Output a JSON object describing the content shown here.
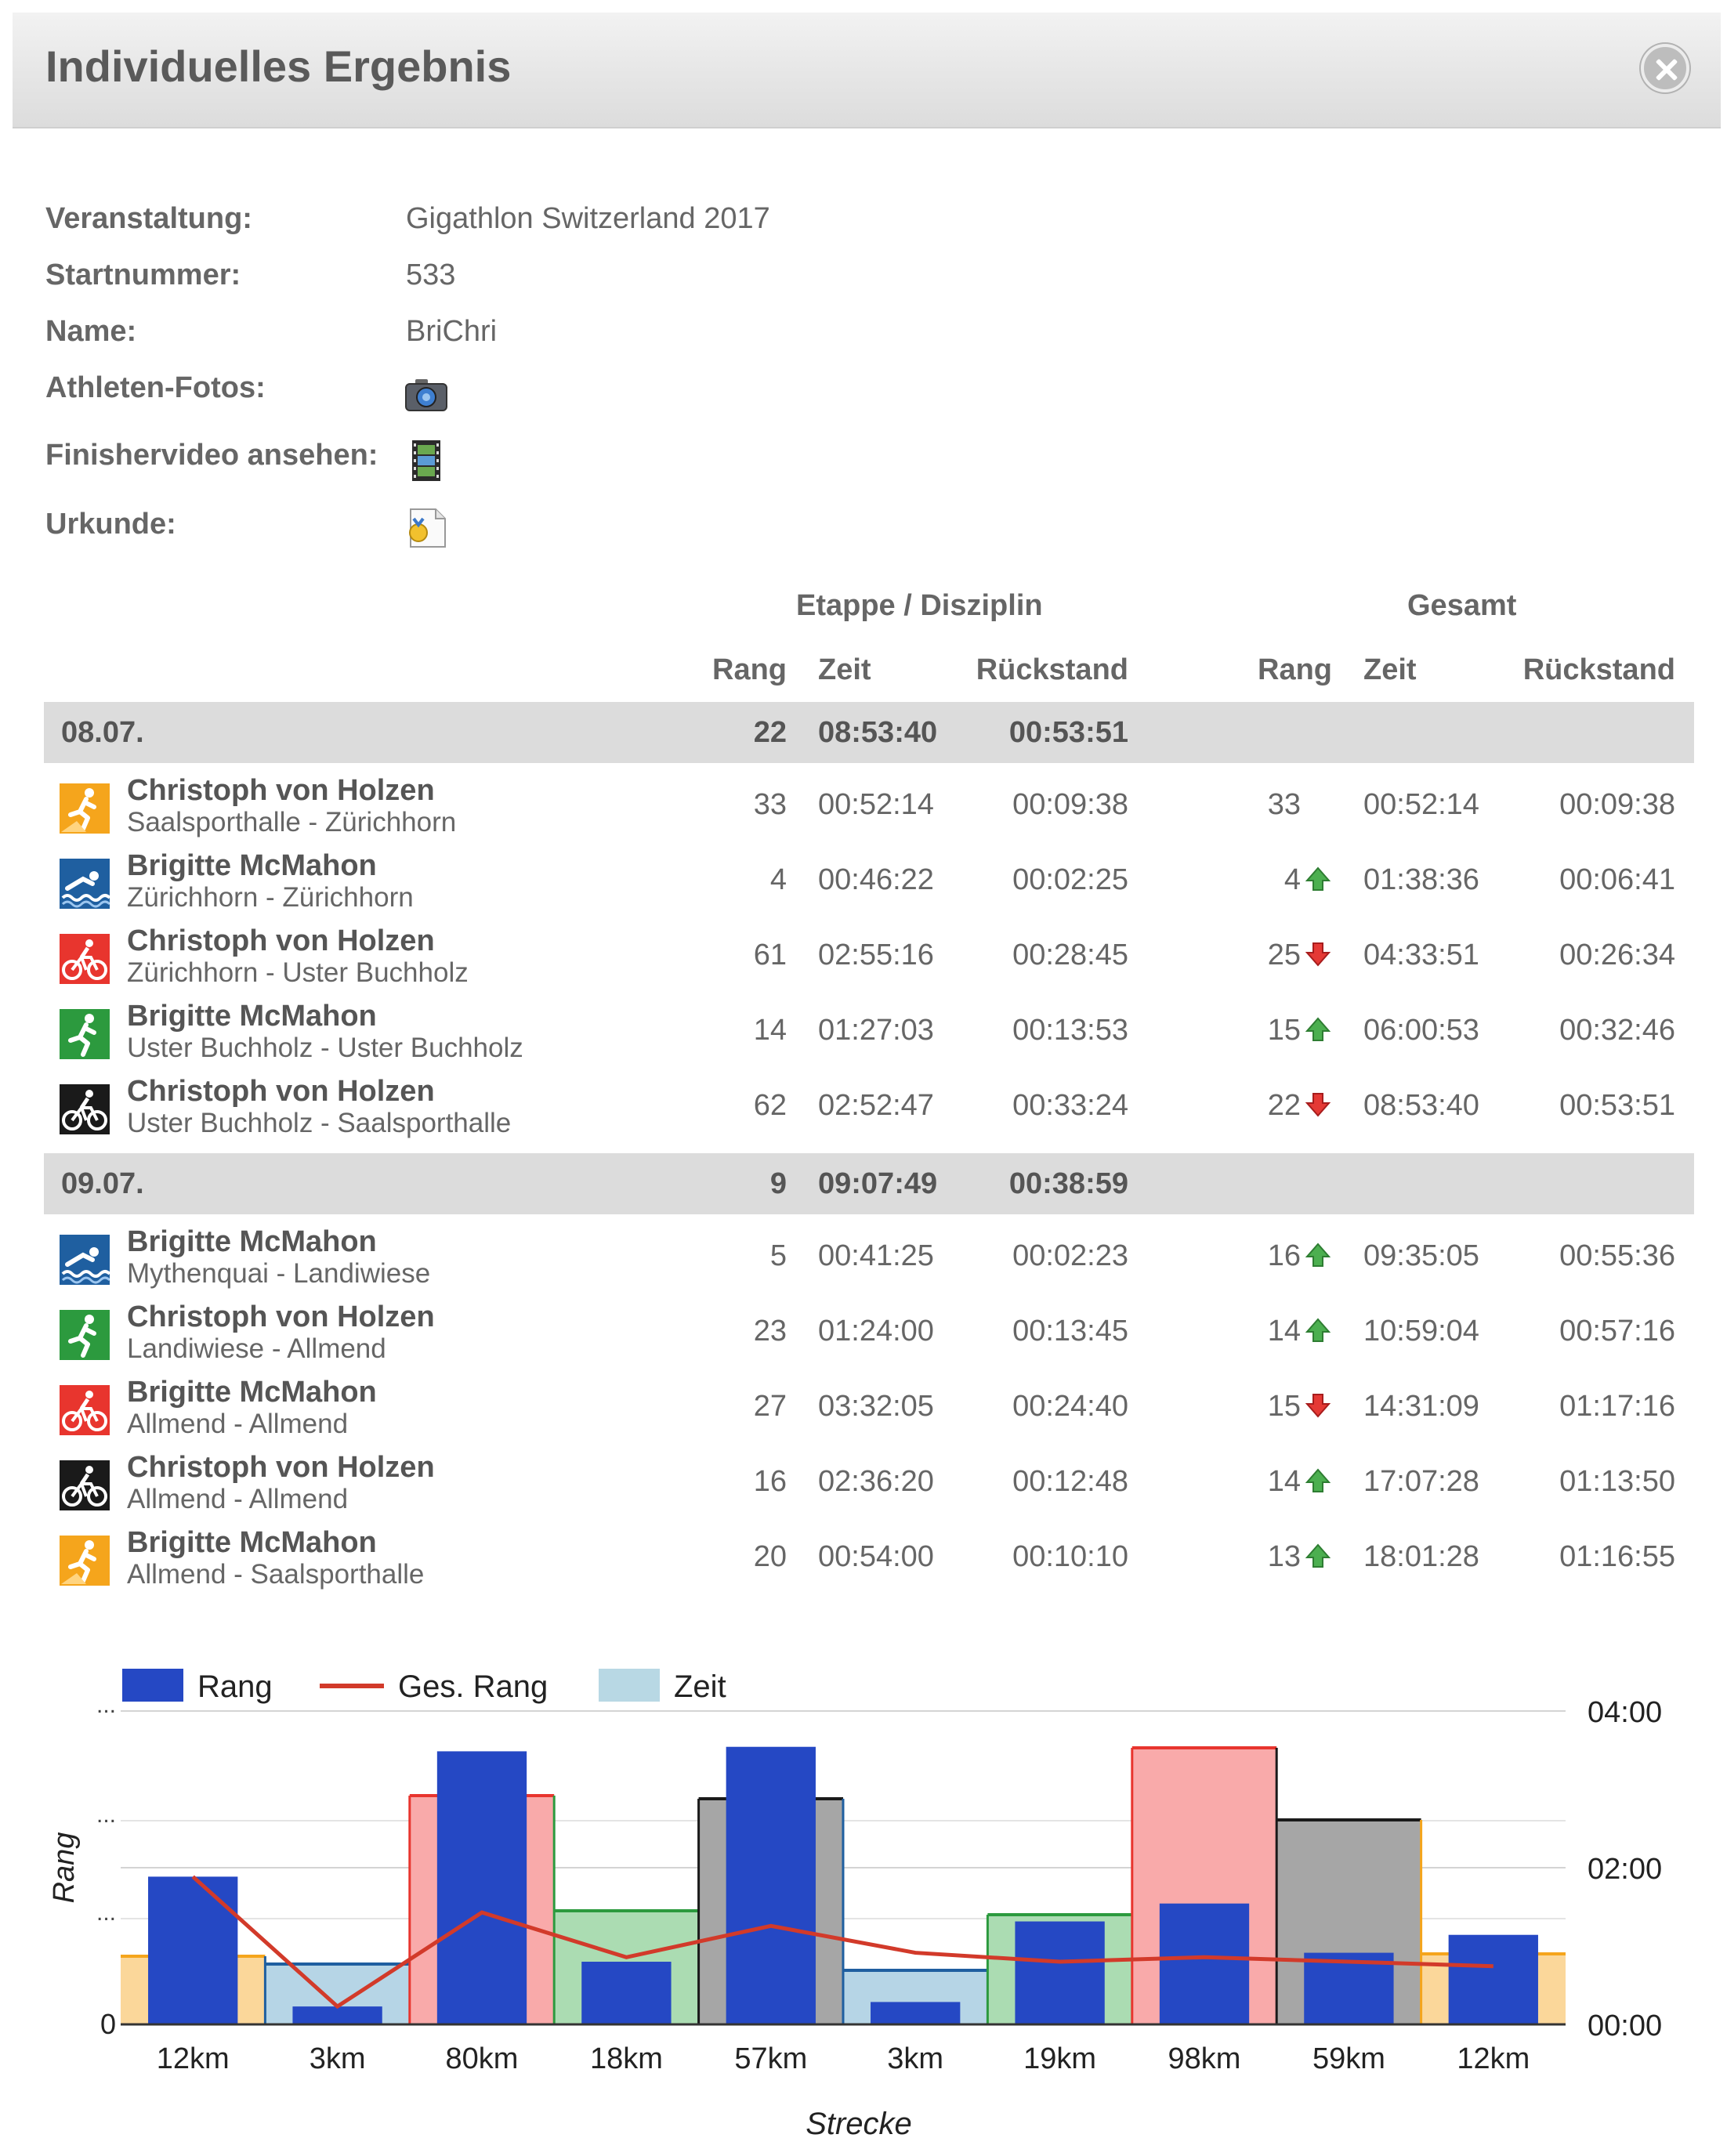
{
  "header": {
    "title": "Individuelles Ergebnis"
  },
  "info": {
    "event_label": "Veranstaltung:",
    "event_value": "Gigathlon Switzerland 2017",
    "bib_label": "Startnummer:",
    "bib_value": "533",
    "name_label": "Name:",
    "name_value": "BriChri",
    "photos_label": "Athleten-Fotos:",
    "video_label": "Finishervideo ansehen:",
    "certificate_label": "Urkunde:"
  },
  "table": {
    "group_stage": "Etappe / Disziplin",
    "group_total": "Gesamt",
    "col_rank": "Rang",
    "col_time": "Zeit",
    "col_gap": "Rückstand"
  },
  "days": [
    {
      "date": "08.07.",
      "rank": "22",
      "time": "08:53:40",
      "gap": "00:53:51",
      "stages": [
        {
          "discipline": "run-mountain",
          "name": "Christoph von Holzen",
          "route": "Saalsporthalle - Zürichhorn",
          "rank": "33",
          "time": "00:52:14",
          "gap": "00:09:38",
          "total_rank": "33",
          "trend": "none",
          "total_time": "00:52:14",
          "total_gap": "00:09:38"
        },
        {
          "discipline": "swim",
          "name": "Brigitte McMahon",
          "route": "Zürichhorn - Zürichhorn",
          "rank": "4",
          "time": "00:46:22",
          "gap": "00:02:25",
          "total_rank": "4",
          "trend": "up",
          "total_time": "01:38:36",
          "total_gap": "00:06:41"
        },
        {
          "discipline": "bike-road",
          "name": "Christoph von Holzen",
          "route": "Zürichhorn - Uster Buchholz",
          "rank": "61",
          "time": "02:55:16",
          "gap": "00:28:45",
          "total_rank": "25",
          "trend": "down",
          "total_time": "04:33:51",
          "total_gap": "00:26:34"
        },
        {
          "discipline": "run",
          "name": "Brigitte McMahon",
          "route": "Uster Buchholz - Uster Buchholz",
          "rank": "14",
          "time": "01:27:03",
          "gap": "00:13:53",
          "total_rank": "15",
          "trend": "up",
          "total_time": "06:00:53",
          "total_gap": "00:32:46"
        },
        {
          "discipline": "mountain-bike",
          "name": "Christoph von Holzen",
          "route": "Uster Buchholz - Saalsporthalle",
          "rank": "62",
          "time": "02:52:47",
          "gap": "00:33:24",
          "total_rank": "22",
          "trend": "down",
          "total_time": "08:53:40",
          "total_gap": "00:53:51"
        }
      ]
    },
    {
      "date": "09.07.",
      "rank": "9",
      "time": "09:07:49",
      "gap": "00:38:59",
      "stages": [
        {
          "discipline": "swim",
          "name": "Brigitte McMahon",
          "route": "Mythenquai - Landiwiese",
          "rank": "5",
          "time": "00:41:25",
          "gap": "00:02:23",
          "total_rank": "16",
          "trend": "up",
          "total_time": "09:35:05",
          "total_gap": "00:55:36"
        },
        {
          "discipline": "run",
          "name": "Christoph von Holzen",
          "route": "Landiwiese - Allmend",
          "rank": "23",
          "time": "01:24:00",
          "gap": "00:13:45",
          "total_rank": "14",
          "trend": "up",
          "total_time": "10:59:04",
          "total_gap": "00:57:16"
        },
        {
          "discipline": "bike-road",
          "name": "Brigitte McMahon",
          "route": "Allmend - Allmend",
          "rank": "27",
          "time": "03:32:05",
          "gap": "00:24:40",
          "total_rank": "15",
          "trend": "down",
          "total_time": "14:31:09",
          "total_gap": "01:17:16"
        },
        {
          "discipline": "mountain-bike",
          "name": "Christoph von Holzen",
          "route": "Allmend - Allmend",
          "rank": "16",
          "time": "02:36:20",
          "gap": "00:12:48",
          "total_rank": "14",
          "trend": "up",
          "total_time": "17:07:28",
          "total_gap": "01:13:50"
        },
        {
          "discipline": "run-mountain",
          "name": "Brigitte McMahon",
          "route": "Allmend - Saalsporthalle",
          "rank": "20",
          "time": "00:54:00",
          "gap": "00:10:10",
          "total_rank": "13",
          "trend": "up",
          "total_time": "18:01:28",
          "total_gap": "01:16:55"
        }
      ]
    }
  ],
  "colors": {
    "run-mountain": "#f5a51c",
    "swim": "#1f5fa0",
    "bike-road": "#e8352e",
    "run": "#2c9a3e",
    "mountain-bike": "#1a1a1a",
    "rank_bar": "#2548c4",
    "total_rank_line": "#d23a2a",
    "time_fill_legend": "#b8d8e4"
  },
  "chart_data": {
    "type": "bar",
    "legend": [
      "Rang",
      "Ges. Rang",
      "Zeit"
    ],
    "legend_position": "top-left",
    "categories": [
      "12km",
      "3km",
      "80km",
      "18km",
      "57km",
      "3km",
      "19km",
      "98km",
      "59km",
      "12km"
    ],
    "xlabel": "Strecke",
    "ylabel": "Rang",
    "y_left_ticks": [
      "0",
      "...",
      "...",
      "..."
    ],
    "y_right_ticks": [
      "00:00",
      "02:00",
      "04:00"
    ],
    "y_right_range_hours": [
      0,
      4
    ],
    "grid": true,
    "series": [
      {
        "name": "Rang",
        "type": "bar",
        "values": [
          33,
          4,
          61,
          14,
          62,
          5,
          23,
          27,
          16,
          20
        ]
      },
      {
        "name": "Ges. Rang",
        "type": "line",
        "values": [
          33,
          4,
          25,
          15,
          22,
          16,
          14,
          15,
          14,
          13
        ]
      },
      {
        "name": "Zeit",
        "type": "step-area",
        "values_hours": [
          0.87,
          0.77,
          2.92,
          1.45,
          2.88,
          0.69,
          1.4,
          3.53,
          2.61,
          0.9
        ],
        "fills": [
          "#fbd79a",
          "#b6d5e6",
          "#f9aaaa",
          "#abdcb2",
          "#a6a6a6",
          "#b6d5e6",
          "#abdcb2",
          "#f9aaaa",
          "#a6a6a6",
          "#fbd79a"
        ],
        "strokes": [
          "#f5a51c",
          "#1f5fa0",
          "#e8352e",
          "#2c9a3e",
          "#1a1a1a",
          "#1f5fa0",
          "#2c9a3e",
          "#e8352e",
          "#1a1a1a",
          "#f5a51c"
        ]
      }
    ]
  }
}
